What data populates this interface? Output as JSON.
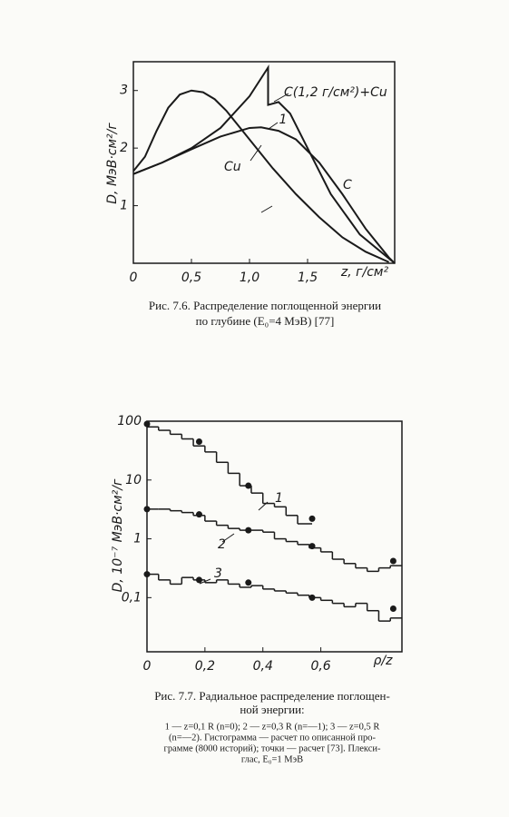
{
  "chart_data": [
    {
      "type": "line",
      "caption": [
        "Рис. 7.6.  Распределение поглощенной энергии",
        "по глубине (E₀=4 МэВ)  [77]"
      ],
      "x_label": "z, г/см²",
      "y_label": "D, МэВ·см²/г",
      "xlim": [
        0,
        2.25
      ],
      "ylim": [
        0,
        3.5
      ],
      "xticks": [
        0,
        {
          "value": 0.5,
          "label": "0,5"
        },
        {
          "value": 1.0,
          "label": "1,0"
        },
        {
          "value": 1.5,
          "label": "1,5"
        }
      ],
      "yticks": [
        1,
        2,
        3
      ],
      "annotations": [
        "1"
      ],
      "series": [
        {
          "name": "Cu",
          "color": "#1a1a1a",
          "x": [
            0,
            0.1,
            0.2,
            0.3,
            0.4,
            0.5,
            0.6,
            0.7,
            0.8,
            0.9,
            1.0,
            1.2,
            1.4,
            1.6,
            1.8,
            2.0,
            2.2
          ],
          "values": [
            1.6,
            1.85,
            2.3,
            2.7,
            2.93,
            3.0,
            2.97,
            2.85,
            2.65,
            2.4,
            2.15,
            1.65,
            1.2,
            0.8,
            0.45,
            0.2,
            0.02
          ]
        },
        {
          "name": "C",
          "color": "#1a1a1a",
          "x": [
            0,
            0.25,
            0.5,
            0.75,
            1.0,
            1.1,
            1.25,
            1.4,
            1.6,
            1.8,
            2.0,
            2.2,
            2.25
          ],
          "values": [
            1.55,
            1.75,
            1.98,
            2.2,
            2.35,
            2.36,
            2.3,
            2.15,
            1.75,
            1.2,
            0.6,
            0.1,
            0
          ]
        },
        {
          "name": "C(1,2 г/см²)+Cu",
          "color": "#1a1a1a",
          "x": [
            0,
            0.25,
            0.5,
            0.75,
            1.0,
            1.16,
            1.16,
            1.25,
            1.35,
            1.5,
            1.7,
            1.95,
            2.25
          ],
          "values": [
            1.55,
            1.75,
            2.0,
            2.35,
            2.9,
            3.4,
            2.75,
            2.8,
            2.6,
            2.0,
            1.2,
            0.5,
            0
          ]
        }
      ]
    },
    {
      "type": "histogram",
      "caption": [
        "Рис. 7.7. Радиальное распределение поглощен-",
        "ной энергии:"
      ],
      "notes": [
        "1 — z=0,1 R (n=0); 2 — z=0,3 R (n=—1); 3 — z=0,5 R",
        "(n=—2). Гистограмма — расчет по описанной про-",
        "грамме (8000 историй); точки — расчет [73]. Плекси-",
        "глас, E₀=1 МэВ"
      ],
      "x_label": "ρ/z",
      "y_label": "D, 10⁻⁷ МэВ·см²/г",
      "log_y": true,
      "xlim": [
        0,
        0.88
      ],
      "ylim": [
        0.012,
        100
      ],
      "xticks": [
        0,
        {
          "value": 0.2,
          "label": "0,2"
        },
        {
          "value": 0.4,
          "label": "0,4"
        },
        {
          "value": 0.6,
          "label": "0,6"
        }
      ],
      "yticks": [
        100,
        10,
        1,
        {
          "value": 0.1,
          "label": "0,1"
        }
      ],
      "series": [
        {
          "name": "1",
          "color": "#1a1a1a",
          "bins": [
            0,
            0.04,
            0.08,
            0.12,
            0.16,
            0.2,
            0.24,
            0.28,
            0.32,
            0.36,
            0.4,
            0.44,
            0.48,
            0.52,
            0.57
          ],
          "values": [
            80,
            70,
            60,
            50,
            38,
            30,
            20,
            13,
            8,
            6,
            4,
            3.5,
            2.5,
            1.8
          ],
          "points": {
            "x": [
              0,
              0.18,
              0.35,
              0.57
            ],
            "values": [
              90,
              45,
              8,
              2.2
            ]
          }
        },
        {
          "name": "2",
          "color": "#1a1a1a",
          "bins": [
            0,
            0.04,
            0.08,
            0.12,
            0.16,
            0.2,
            0.24,
            0.28,
            0.32,
            0.36,
            0.4,
            0.44,
            0.48,
            0.52,
            0.56,
            0.6,
            0.64,
            0.68,
            0.72,
            0.76,
            0.8,
            0.84,
            0.88
          ],
          "values": [
            3.2,
            3.2,
            3.0,
            2.8,
            2.5,
            2.0,
            1.7,
            1.5,
            1.4,
            1.4,
            1.3,
            1.0,
            0.9,
            0.8,
            0.7,
            0.6,
            0.45,
            0.38,
            0.32,
            0.28,
            0.32,
            0.35
          ],
          "points": {
            "x": [
              0,
              0.18,
              0.35,
              0.57,
              0.85
            ],
            "values": [
              3.2,
              2.6,
              1.4,
              0.75,
              0.42
            ]
          }
        },
        {
          "name": "3",
          "color": "#1a1a1a",
          "bins": [
            0,
            0.04,
            0.08,
            0.12,
            0.16,
            0.2,
            0.24,
            0.28,
            0.32,
            0.36,
            0.4,
            0.44,
            0.48,
            0.52,
            0.56,
            0.6,
            0.64,
            0.68,
            0.72,
            0.76,
            0.8,
            0.84,
            0.88
          ],
          "values": [
            0.25,
            0.2,
            0.17,
            0.22,
            0.2,
            0.18,
            0.2,
            0.17,
            0.15,
            0.16,
            0.14,
            0.13,
            0.12,
            0.11,
            0.1,
            0.09,
            0.08,
            0.07,
            0.08,
            0.06,
            0.04,
            0.045
          ],
          "points": {
            "x": [
              0,
              0.18,
              0.35,
              0.57,
              0.85
            ],
            "values": [
              0.25,
              0.2,
              0.18,
              0.1,
              0.065
            ]
          }
        }
      ]
    }
  ]
}
